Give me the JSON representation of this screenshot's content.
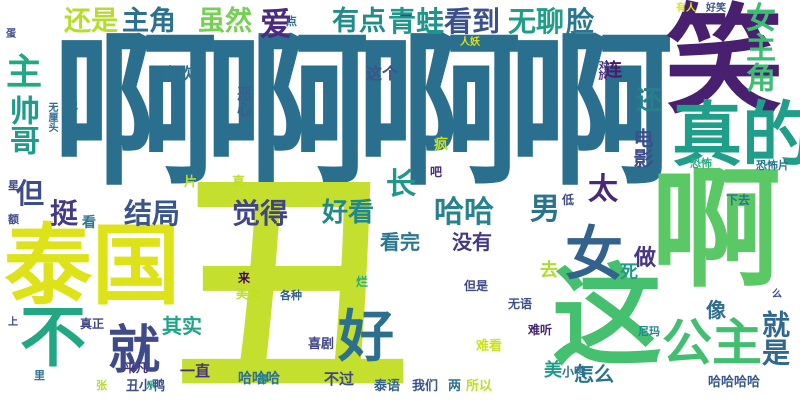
{
  "background_color": "#ffffff",
  "words": [
    {
      "text": "啊啊啊啊",
      "color": "#2a6f8e"
    },
    {
      "text": "丑",
      "color": "#c5df2e"
    },
    {
      "text": "笑",
      "color": "#48206f"
    },
    {
      "text": "啊",
      "color": "#5ac864"
    },
    {
      "text": "泰国",
      "color": "#dde318"
    },
    {
      "text": "这",
      "color": "#45c06f"
    },
    {
      "text": "真的",
      "color": "#1f9e89"
    },
    {
      "text": "女",
      "color": "#33638d"
    },
    {
      "text": "不",
      "color": "#22a785"
    },
    {
      "text": "就",
      "color": "#3e4a89"
    },
    {
      "text": "好",
      "color": "#2d708e"
    },
    {
      "text": "公主",
      "color": "#42be71"
    },
    {
      "text": "还是",
      "color": "#b5de2b"
    },
    {
      "text": "主角",
      "color": "#2c728e"
    },
    {
      "text": "虽然",
      "color": "#75d054"
    },
    {
      "text": "爱",
      "color": "#4b2a80"
    },
    {
      "text": "有点",
      "color": "#228c8d"
    },
    {
      "text": "青蛙",
      "color": "#1f968b"
    },
    {
      "text": "看到",
      "color": "#3b518b"
    },
    {
      "text": "无聊",
      "color": "#1f9f88"
    },
    {
      "text": "脸",
      "color": "#2a768e"
    },
    {
      "text": "女主角",
      "color": "#3fbc73"
    },
    {
      "text": "帅哥",
      "color": "#1e9b8a"
    },
    {
      "text": "主",
      "color": "#22a884"
    },
    {
      "text": "但",
      "color": "#3d4d8a"
    },
    {
      "text": "挺",
      "color": "#443a83"
    },
    {
      "text": "结局",
      "color": "#3a548c"
    },
    {
      "text": "觉得",
      "color": "#414487"
    },
    {
      "text": "好看",
      "color": "#23888e"
    },
    {
      "text": "哈哈",
      "color": "#26828e"
    },
    {
      "text": "长",
      "color": "#1f978b"
    },
    {
      "text": "男",
      "color": "#2b748e"
    },
    {
      "text": "太",
      "color": "#482979"
    },
    {
      "text": "电影",
      "color": "#3d4e8a"
    },
    {
      "text": "还",
      "color": "#277f8e"
    },
    {
      "text": "做",
      "color": "#453781"
    },
    {
      "text": "就是",
      "color": "#31688e"
    },
    {
      "text": "喜欢",
      "color": "#2d718e"
    },
    {
      "text": "这个",
      "color": "#3a548c"
    },
    {
      "text": "恶心",
      "color": "#35608d"
    },
    {
      "text": "连",
      "color": "#481b6d"
    },
    {
      "text": "看完",
      "color": "#2a778e"
    },
    {
      "text": "没有",
      "color": "#453882"
    },
    {
      "text": "其实",
      "color": "#20a386"
    },
    {
      "text": "像",
      "color": "#2e6e8e"
    },
    {
      "text": "怎么",
      "color": "#2c718e"
    },
    {
      "text": "死",
      "color": "#1f9a8a"
    },
    {
      "text": "去",
      "color": "#addc30"
    },
    {
      "text": "美",
      "color": "#1e9c89"
    },
    {
      "text": "小鸭",
      "color": "#2c738e"
    },
    {
      "text": "不过",
      "color": "#3f4889"
    },
    {
      "text": "一直",
      "color": "#46307e"
    },
    {
      "text": "哈哈哈",
      "color": "#2d708e"
    },
    {
      "text": "哈哈哈哈",
      "color": "#37598c"
    },
    {
      "text": "平凡",
      "color": "#453581"
    },
    {
      "text": "丑小鸭",
      "color": "#3c4f8a"
    },
    {
      "text": "喜剧",
      "color": "#404588"
    },
    {
      "text": "泰语",
      "color": "#33638d"
    },
    {
      "text": "我们",
      "color": "#3b528b"
    },
    {
      "text": "所以",
      "color": "#bddf26"
    },
    {
      "text": "两",
      "color": "#2e6f8e"
    },
    {
      "text": "难看",
      "color": "#cde11d"
    },
    {
      "text": "无语",
      "color": "#3b518b"
    },
    {
      "text": "难听",
      "color": "#482475"
    },
    {
      "text": "但是",
      "color": "#3e4989"
    },
    {
      "text": "各种",
      "color": "#34618d"
    },
    {
      "text": "烂",
      "color": "#25ac82"
    },
    {
      "text": "来",
      "color": "#440154"
    },
    {
      "text": "美女",
      "color": "#bddf26"
    },
    {
      "text": "真正",
      "color": "#3f4788"
    },
    {
      "text": "片",
      "color": "#c2df23"
    },
    {
      "text": "真",
      "color": "#bddf26"
    },
    {
      "text": "吧",
      "color": "#472d7b"
    },
    {
      "text": "疯",
      "color": "#c8e020"
    },
    {
      "text": "低",
      "color": "#3e4c8a"
    },
    {
      "text": "下去",
      "color": "#2c738e"
    },
    {
      "text": "恐怖片",
      "color": "#2a788e"
    },
    {
      "text": "恐怖",
      "color": "#29af7f"
    },
    {
      "text": "尼玛",
      "color": "#25848e"
    },
    {
      "text": "有人",
      "color": "#dfe318"
    },
    {
      "text": "好笑",
      "color": "#3b528b"
    },
    {
      "text": "人妖",
      "color": "#d8e219"
    },
    {
      "text": "点",
      "color": "#2d718e"
    },
    {
      "text": "看",
      "color": "#2a788e"
    },
    {
      "text": "说",
      "color": "#2d708e"
    },
    {
      "text": "无厘头",
      "color": "#2f6c8e"
    },
    {
      "text": "星",
      "color": "#3f4889"
    },
    {
      "text": "额",
      "color": "#3f4788"
    },
    {
      "text": "里",
      "color": "#2b758e"
    },
    {
      "text": "张",
      "color": "#b2dd2d"
    },
    {
      "text": "上",
      "color": "#3f4889"
    },
    {
      "text": "得",
      "color": "#25838e"
    },
    {
      "text": "蛋",
      "color": "#3e4a89"
    },
    {
      "text": "么",
      "color": "#3e4a89"
    },
    {
      "text": "对於",
      "color": "#472f7d"
    },
    {
      "text": "一",
      "color": "#414487"
    },
    {
      "text": "乐",
      "color": "#26ad81"
    }
  ]
}
